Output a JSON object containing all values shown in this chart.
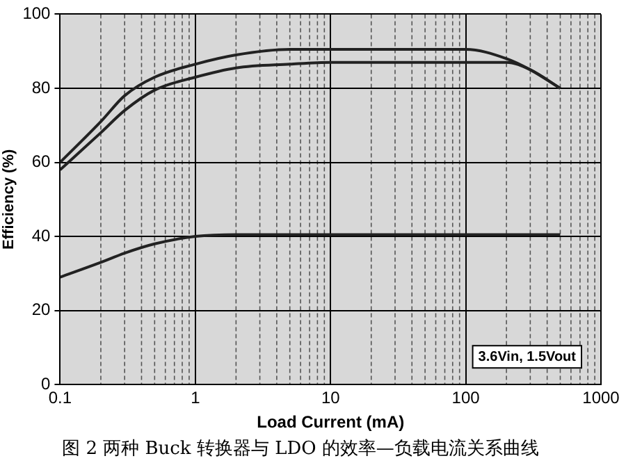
{
  "chart_data": {
    "type": "line",
    "title": "图 2 两种 Buck 转换器与 LDO 的效率—负载电流关系曲线",
    "xlabel": "Load Current (mA)",
    "ylabel": "Efficiency (%)",
    "series": [
      {
        "color": "#222222",
        "x": [
          0.1,
          0.2,
          0.3,
          0.5,
          1,
          2,
          5,
          10,
          50,
          100,
          200,
          300,
          500
        ],
        "values": [
          60,
          71,
          78,
          83,
          86.5,
          89,
          90.5,
          90.5,
          90.5,
          90.5,
          88,
          85,
          80
        ]
      },
      {
        "color": "#222222",
        "x": [
          0.1,
          0.2,
          0.3,
          0.5,
          1,
          2,
          5,
          10,
          50,
          100,
          200,
          300,
          500
        ],
        "values": [
          58,
          68,
          74,
          79.5,
          83,
          85.5,
          86.5,
          87,
          87,
          87,
          87,
          85,
          80
        ]
      },
      {
        "color": "#222222",
        "x": [
          0.1,
          0.2,
          0.3,
          0.5,
          1,
          2,
          10,
          100,
          500
        ],
        "values": [
          29,
          33,
          35.5,
          38,
          40,
          40.5,
          40.5,
          40.5,
          40.5
        ]
      }
    ],
    "log": "x",
    "xlim": [
      0.1,
      1000
    ],
    "xticks": [
      0.1,
      1,
      10,
      100,
      1000
    ],
    "ylim": [
      0,
      100
    ],
    "yticks": [
      0,
      20,
      40,
      60,
      80,
      100
    ],
    "grid": true,
    "legend": false,
    "marker": "none",
    "line_style": "solid",
    "annotations": [
      "3.6Vin, 1.5Vout"
    ]
  }
}
